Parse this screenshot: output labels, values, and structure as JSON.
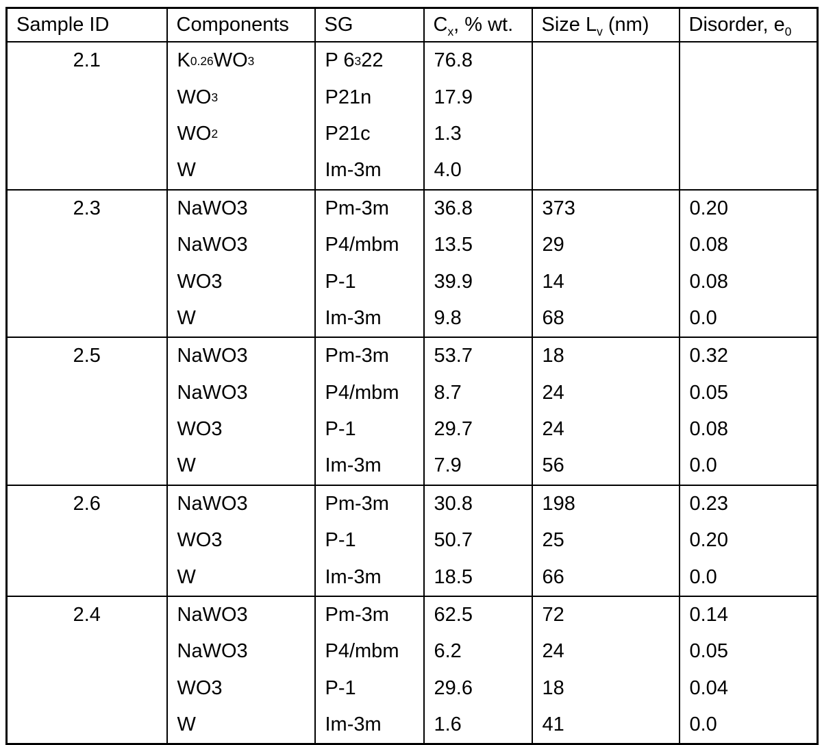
{
  "colors": {
    "border": "#000000",
    "background": "#ffffff",
    "text": "#000000"
  },
  "table": {
    "headers": [
      {
        "key": "sample_id",
        "segs": [
          {
            "t": "Sample ID"
          }
        ]
      },
      {
        "key": "components",
        "segs": [
          {
            "t": "Components"
          }
        ]
      },
      {
        "key": "sg",
        "segs": [
          {
            "t": "SG"
          }
        ]
      },
      {
        "key": "cx",
        "segs": [
          {
            "t": "C"
          },
          {
            "t": "x",
            "sub": true
          },
          {
            "t": ", % wt."
          }
        ]
      },
      {
        "key": "size",
        "segs": [
          {
            "t": "Size L"
          },
          {
            "t": "v",
            "sub": true
          },
          {
            "t": " (nm)"
          }
        ]
      },
      {
        "key": "disorder",
        "segs": [
          {
            "t": "Disorder, e"
          },
          {
            "t": "0",
            "sub": true
          }
        ]
      }
    ],
    "groups": [
      {
        "sample_id": "2.1",
        "rows": [
          {
            "component": [
              {
                "t": "K"
              },
              {
                "t": "0.26",
                "sub": true
              },
              {
                "t": "WO"
              },
              {
                "t": "3",
                "sub": true
              }
            ],
            "sg": [
              {
                "t": "P 6"
              },
              {
                "t": "3",
                "sub": true
              },
              {
                "t": " 22"
              }
            ],
            "cx": "76.8",
            "size": "",
            "disorder": ""
          },
          {
            "component": [
              {
                "t": "WO"
              },
              {
                "t": "3",
                "sub": true
              }
            ],
            "sg": [
              {
                "t": "P21n"
              }
            ],
            "cx": "17.9",
            "size": "",
            "disorder": ""
          },
          {
            "component": [
              {
                "t": "WO"
              },
              {
                "t": "2",
                "sub": true
              }
            ],
            "sg": [
              {
                "t": "P21c"
              }
            ],
            "cx": "1.3",
            "size": "",
            "disorder": ""
          },
          {
            "component": [
              {
                "t": "W"
              }
            ],
            "sg": [
              {
                "t": "Im-3m"
              }
            ],
            "cx": "4.0",
            "size": "",
            "disorder": ""
          }
        ]
      },
      {
        "sample_id": "2.3",
        "rows": [
          {
            "component": [
              {
                "t": "NaWO3"
              }
            ],
            "sg": [
              {
                "t": "Pm-3m"
              }
            ],
            "cx": "36.8",
            "size": "373",
            "disorder": "0.20"
          },
          {
            "component": [
              {
                "t": "NaWO3"
              }
            ],
            "sg": [
              {
                "t": "P4/mbm"
              }
            ],
            "cx": "13.5",
            "size": "29",
            "disorder": "0.08"
          },
          {
            "component": [
              {
                "t": "WO3"
              }
            ],
            "sg": [
              {
                "t": "P-1"
              }
            ],
            "cx": "39.9",
            "size": "14",
            "disorder": "0.08"
          },
          {
            "component": [
              {
                "t": "W"
              }
            ],
            "sg": [
              {
                "t": "Im-3m"
              }
            ],
            "cx": "9.8",
            "size": "68",
            "disorder": "0.0"
          }
        ]
      },
      {
        "sample_id": "2.5",
        "rows": [
          {
            "component": [
              {
                "t": "NaWO3"
              }
            ],
            "sg": [
              {
                "t": "Pm-3m"
              }
            ],
            "cx": "53.7",
            "size": "18",
            "disorder": "0.32"
          },
          {
            "component": [
              {
                "t": "NaWO3"
              }
            ],
            "sg": [
              {
                "t": "P4/mbm"
              }
            ],
            "cx": "8.7",
            "size": "24",
            "disorder": "0.05"
          },
          {
            "component": [
              {
                "t": "WO3"
              }
            ],
            "sg": [
              {
                "t": "P-1"
              }
            ],
            "cx": "29.7",
            "size": "24",
            "disorder": "0.08"
          },
          {
            "component": [
              {
                "t": "W"
              }
            ],
            "sg": [
              {
                "t": "Im-3m"
              }
            ],
            "cx": "7.9",
            "size": "56",
            "disorder": "0.0"
          }
        ]
      },
      {
        "sample_id": "2.6",
        "rows": [
          {
            "component": [
              {
                "t": "NaWO3"
              }
            ],
            "sg": [
              {
                "t": "Pm-3m"
              }
            ],
            "cx": "30.8",
            "size": "198",
            "disorder": "0.23"
          },
          {
            "component": [
              {
                "t": "WO3"
              }
            ],
            "sg": [
              {
                "t": "P-1"
              }
            ],
            "cx": "50.7",
            "size": "25",
            "disorder": "0.20"
          },
          {
            "component": [
              {
                "t": "W"
              }
            ],
            "sg": [
              {
                "t": "Im-3m"
              }
            ],
            "cx": "18.5",
            "size": "66",
            "disorder": "0.0"
          }
        ]
      },
      {
        "sample_id": "2.4",
        "rows": [
          {
            "component": [
              {
                "t": "NaWO3"
              }
            ],
            "sg": [
              {
                "t": "Pm-3m"
              }
            ],
            "cx": "62.5",
            "size": "72",
            "disorder": "0.14"
          },
          {
            "component": [
              {
                "t": "NaWO3"
              }
            ],
            "sg": [
              {
                "t": "P4/mbm"
              }
            ],
            "cx": "6.2",
            "size": "24",
            "disorder": "0.05"
          },
          {
            "component": [
              {
                "t": "WO3"
              }
            ],
            "sg": [
              {
                "t": "P-1"
              }
            ],
            "cx": "29.6",
            "size": "18",
            "disorder": "0.04"
          },
          {
            "component": [
              {
                "t": "W"
              }
            ],
            "sg": [
              {
                "t": "Im-3m"
              }
            ],
            "cx": "1.6",
            "size": "41",
            "disorder": "0.0"
          }
        ]
      }
    ]
  }
}
